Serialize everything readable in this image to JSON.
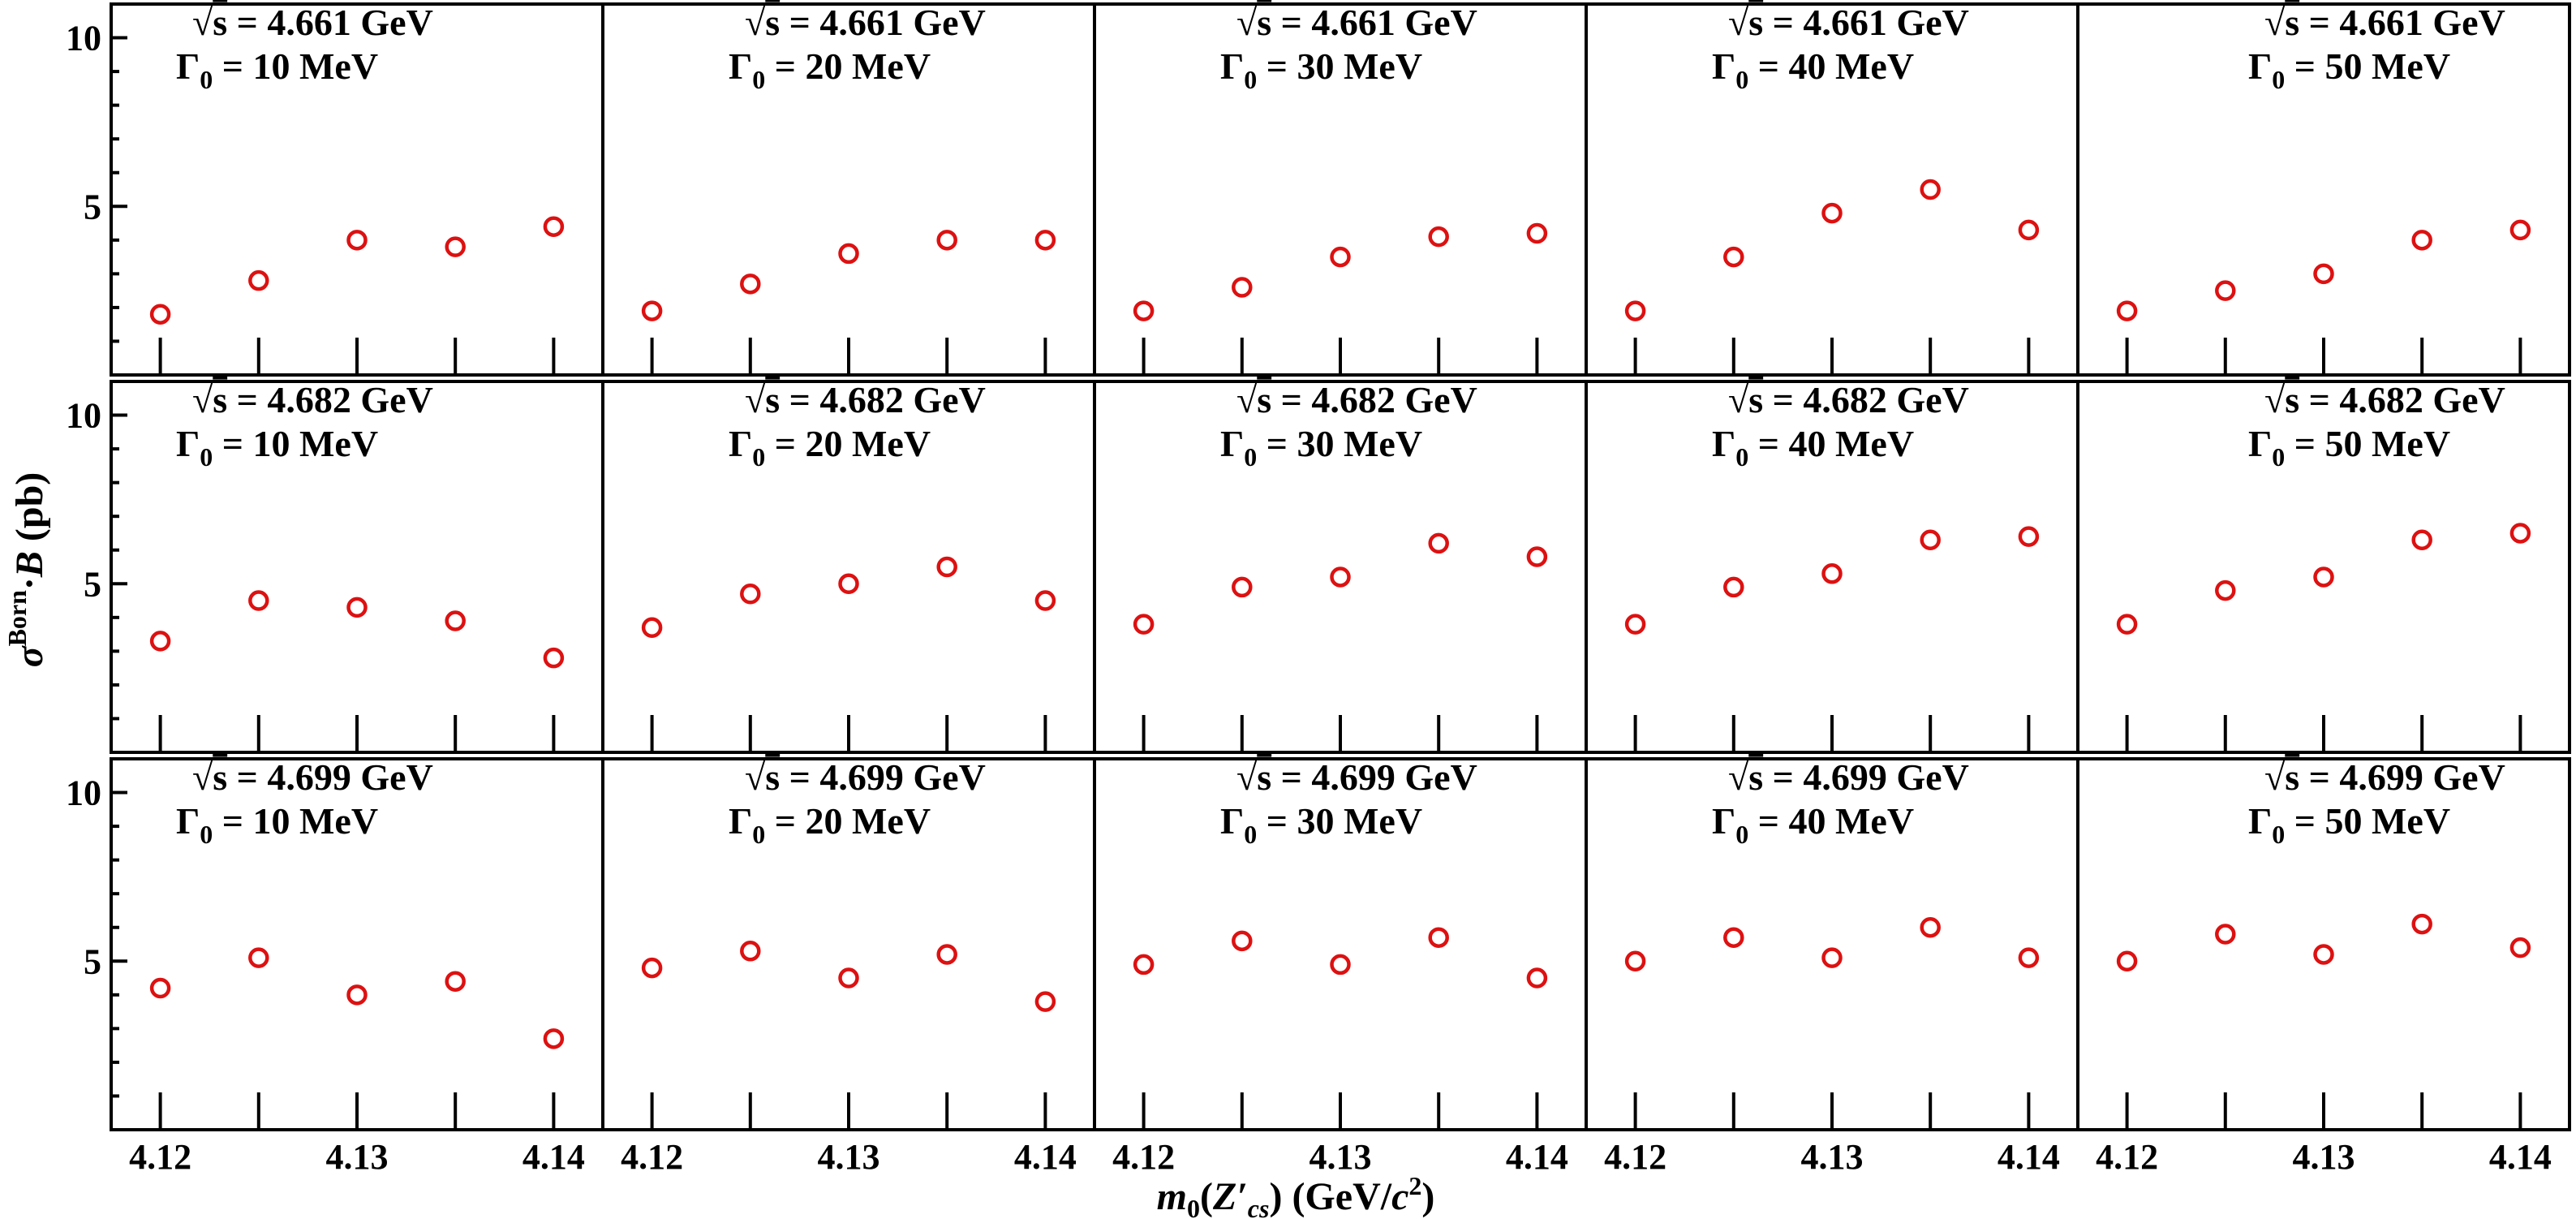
{
  "chart_data": {
    "type": "scatter",
    "layout": {
      "rows": 3,
      "cols": 5,
      "shared_axes": true
    },
    "xlabel": {
      "m": "m",
      "sub0": "0",
      "open": "(",
      "Z": "Z′",
      "sub": "cs",
      "close": ") (GeV/",
      "c": "c",
      "sup": "2",
      "end": ")"
    },
    "ylabel": {
      "sigma": "σ",
      "sup": "Born",
      "dot": "·",
      "B": "B",
      "unit": " (pb)"
    },
    "x": [
      4.12,
      4.125,
      4.13,
      4.135,
      4.14
    ],
    "xlim": [
      4.1175,
      4.1425
    ],
    "ylim": [
      0,
      11
    ],
    "x_ticks": [
      4.12,
      4.13,
      4.14
    ],
    "x_tick_labels": [
      "4.12",
      "4.13",
      "4.14"
    ],
    "y_ticks": [
      5,
      10
    ],
    "y_tick_labels": [
      "5",
      "10"
    ],
    "marker": {
      "shape": "open-circle",
      "color": "#dd1111"
    },
    "energy_prefix": "s",
    "energy_suffix": " = ",
    "energy_unit": " GeV",
    "width_prefix": "Γ",
    "width_sub": "0",
    "width_suffix": " = ",
    "width_unit": " MeV",
    "rows": [
      {
        "energy": "4.661",
        "panels": [
          {
            "width": "10",
            "values": [
              1.8,
              2.8,
              4.0,
              3.8,
              4.4
            ]
          },
          {
            "width": "20",
            "values": [
              1.9,
              2.7,
              3.6,
              4.0,
              4.0
            ]
          },
          {
            "width": "30",
            "values": [
              1.9,
              2.6,
              3.5,
              4.1,
              4.2
            ]
          },
          {
            "width": "40",
            "values": [
              1.9,
              3.5,
              4.8,
              5.5,
              4.3
            ]
          },
          {
            "width": "50",
            "values": [
              1.9,
              2.5,
              3.0,
              4.0,
              4.3
            ]
          }
        ]
      },
      {
        "energy": "4.682",
        "panels": [
          {
            "width": "10",
            "values": [
              3.3,
              4.5,
              4.3,
              3.9,
              2.8
            ]
          },
          {
            "width": "20",
            "values": [
              3.7,
              4.7,
              5.0,
              5.5,
              4.5
            ]
          },
          {
            "width": "30",
            "values": [
              3.8,
              4.9,
              5.2,
              6.2,
              5.8
            ]
          },
          {
            "width": "40",
            "values": [
              3.8,
              4.9,
              5.3,
              6.3,
              6.4
            ]
          },
          {
            "width": "50",
            "values": [
              3.8,
              4.8,
              5.2,
              6.3,
              6.5
            ]
          }
        ]
      },
      {
        "energy": "4.699",
        "panels": [
          {
            "width": "10",
            "values": [
              4.2,
              5.1,
              4.0,
              4.4,
              2.7
            ]
          },
          {
            "width": "20",
            "values": [
              4.8,
              5.3,
              4.5,
              5.2,
              3.8
            ]
          },
          {
            "width": "30",
            "values": [
              4.9,
              5.6,
              4.9,
              5.7,
              4.5
            ]
          },
          {
            "width": "40",
            "values": [
              5.0,
              5.7,
              5.1,
              6.0,
              5.1
            ]
          },
          {
            "width": "50",
            "values": [
              5.0,
              5.8,
              5.2,
              6.1,
              5.4
            ]
          }
        ]
      }
    ]
  }
}
